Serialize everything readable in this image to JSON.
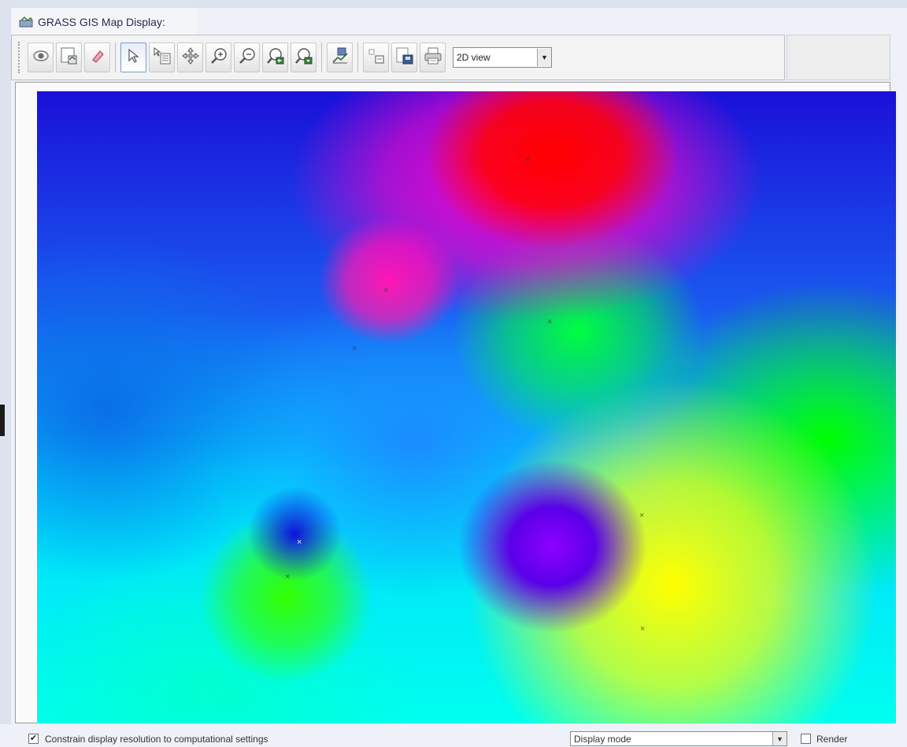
{
  "window": {
    "title": "GRASS GIS Map Display:"
  },
  "toolbar": {
    "buttons": [
      {
        "name": "display-map-button",
        "icon": "eye-icon"
      },
      {
        "name": "render-map-button",
        "icon": "render-map-icon"
      },
      {
        "name": "erase-display-button",
        "icon": "eraser-icon"
      },
      {
        "name": "pointer-button",
        "icon": "pointer-icon"
      },
      {
        "name": "query-button",
        "icon": "query-icon"
      },
      {
        "name": "pan-button",
        "icon": "pan-icon"
      },
      {
        "name": "zoom-in-button",
        "icon": "zoom-in-icon"
      },
      {
        "name": "zoom-out-button",
        "icon": "zoom-out-icon"
      },
      {
        "name": "zoom-back-button",
        "icon": "zoom-back-icon"
      },
      {
        "name": "zoom-menu-button",
        "icon": "zoom-menu-icon"
      },
      {
        "name": "analyze-button",
        "icon": "analyze-icon"
      },
      {
        "name": "overlay-button",
        "icon": "overlay-icon"
      },
      {
        "name": "save-button",
        "icon": "save-icon"
      },
      {
        "name": "print-button",
        "icon": "print-icon"
      }
    ],
    "view_mode": "2D view"
  },
  "statusbar": {
    "constrain_label": "Constrain display resolution to computational settings",
    "constrain_checked": true,
    "mode_value": "Display mode",
    "render_label": "Render",
    "render_checked": false
  },
  "map": {
    "colors": {
      "red": "#ff0000",
      "magenta": "#ff00c8",
      "blue": "#1a10d8",
      "cyan": "#00ffee",
      "green": "#00ff40",
      "yellow": "#ffff00",
      "violet": "#8d00ff"
    }
  }
}
